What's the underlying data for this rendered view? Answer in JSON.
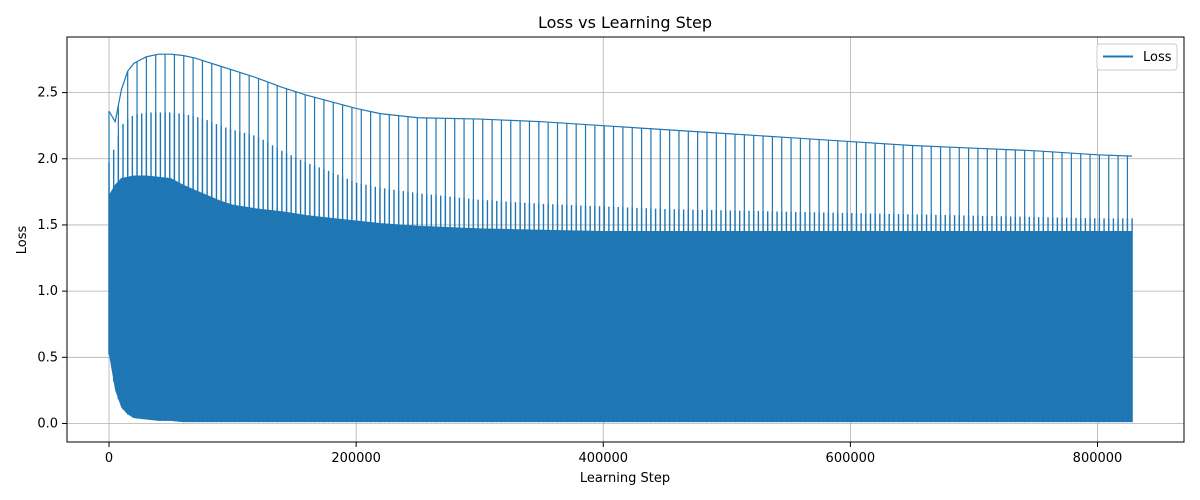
{
  "chart_data": {
    "type": "line",
    "title": "Loss vs Learning Step",
    "xlabel": "Learning Step",
    "ylabel": "Loss",
    "xlim": [
      -34000,
      870000
    ],
    "ylim": [
      -0.14,
      2.92
    ],
    "xticks": [
      0,
      200000,
      400000,
      600000,
      800000
    ],
    "xtick_labels": [
      "0",
      "200000",
      "400000",
      "600000",
      "800000"
    ],
    "yticks": [
      0.0,
      0.5,
      1.0,
      1.5,
      2.0,
      2.5
    ],
    "ytick_labels": [
      "0.0",
      "0.5",
      "1.0",
      "1.5",
      "2.0",
      "2.5"
    ],
    "grid": true,
    "legend": {
      "position": "top-right",
      "entries": [
        "Loss"
      ]
    },
    "series": [
      {
        "name": "Loss",
        "color": "#1f77b4",
        "x": [
          0,
          5000,
          10000,
          15000,
          20000,
          30000,
          40000,
          50000,
          60000,
          70000,
          80000,
          90000,
          100000,
          120000,
          140000,
          160000,
          180000,
          200000,
          220000,
          250000,
          300000,
          350000,
          400000,
          450000,
          500000,
          550000,
          600000,
          650000,
          700000,
          750000,
          800000,
          828000
        ],
        "y_max": [
          2.36,
          2.28,
          2.52,
          2.66,
          2.72,
          2.77,
          2.79,
          2.79,
          2.78,
          2.76,
          2.73,
          2.7,
          2.67,
          2.61,
          2.54,
          2.48,
          2.43,
          2.38,
          2.34,
          2.31,
          2.3,
          2.28,
          2.25,
          2.22,
          2.19,
          2.16,
          2.13,
          2.1,
          2.08,
          2.06,
          2.03,
          2.02
        ],
        "y_upper": [
          1.97,
          2.1,
          2.25,
          2.3,
          2.33,
          2.35,
          2.35,
          2.35,
          2.34,
          2.32,
          2.29,
          2.25,
          2.22,
          2.17,
          2.06,
          1.97,
          1.9,
          1.82,
          1.78,
          1.74,
          1.69,
          1.66,
          1.64,
          1.62,
          1.61,
          1.6,
          1.59,
          1.58,
          1.57,
          1.56,
          1.55,
          1.55
        ],
        "y_mid": [
          1.72,
          1.8,
          1.85,
          1.86,
          1.87,
          1.87,
          1.86,
          1.85,
          1.8,
          1.76,
          1.72,
          1.68,
          1.65,
          1.62,
          1.6,
          1.57,
          1.55,
          1.53,
          1.51,
          1.49,
          1.47,
          1.46,
          1.45,
          1.45,
          1.45,
          1.45,
          1.45,
          1.45,
          1.45,
          1.45,
          1.45,
          1.45
        ],
        "y_min": [
          0.52,
          0.25,
          0.12,
          0.07,
          0.04,
          0.03,
          0.02,
          0.02,
          0.01,
          0.01,
          0.01,
          0.01,
          0.01,
          0.01,
          0.01,
          0.01,
          0.01,
          0.01,
          0.01,
          0.01,
          0.01,
          0.01,
          0.01,
          0.01,
          0.01,
          0.01,
          0.01,
          0.01,
          0.01,
          0.01,
          0.01,
          0.01
        ]
      }
    ]
  }
}
